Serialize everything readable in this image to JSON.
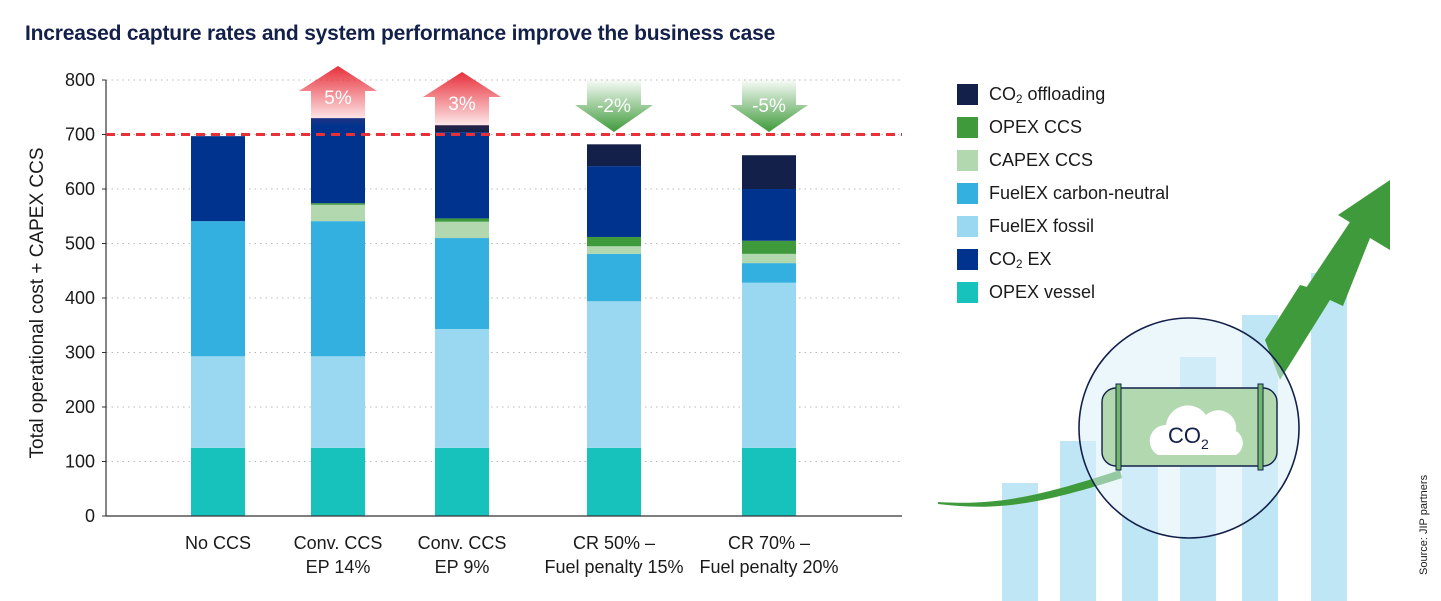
{
  "title": "Increased capture rates and system performance improve the business case",
  "source": "Source: JIP partners",
  "illustration": {
    "tank_label": "CO",
    "tank_label_sub": "2",
    "icon": "co2-tank-icon"
  },
  "colors": {
    "CO2 offloading": "#13214a",
    "OPEX CCS": "#3e9a3a",
    "CAPEX CCS": "#b2d8b0",
    "FuelEX carbon-neutral": "#34b0e0",
    "FuelEX fossil": "#9ad8f1",
    "CO2 EX": "#00338e",
    "OPEX vessel": "#17c2bd",
    "reference_line": "#e8303a",
    "increase": "#e8303a",
    "decrease": "#3e9a3a"
  },
  "legend": [
    {
      "key": "CO2 offloading",
      "label": "CO",
      "sub": "2",
      "suffix": " offloading"
    },
    {
      "key": "OPEX CCS",
      "label": "OPEX CCS",
      "sub": "",
      "suffix": ""
    },
    {
      "key": "CAPEX CCS",
      "label": "CAPEX CCS",
      "sub": "",
      "suffix": ""
    },
    {
      "key": "FuelEX carbon-neutral",
      "label": "FuelEX carbon-neutral",
      "sub": "",
      "suffix": ""
    },
    {
      "key": "FuelEX fossil",
      "label": "FuelEX fossil",
      "sub": "",
      "suffix": ""
    },
    {
      "key": "CO2 EX",
      "label": "CO",
      "sub": "2",
      "suffix": " EX"
    },
    {
      "key": "OPEX vessel",
      "label": "OPEX vessel",
      "sub": "",
      "suffix": ""
    }
  ],
  "chart_data": {
    "type": "bar",
    "stacked": true,
    "title": "Increased capture rates and system performance improve the business case",
    "xlabel": "",
    "ylabel": "Total operational cost + CAPEX CCS",
    "ylim": [
      0,
      800
    ],
    "yticks": [
      0,
      100,
      200,
      300,
      400,
      500,
      600,
      700,
      800
    ],
    "grid": true,
    "legend_position": "right",
    "reference_line": {
      "y": 700,
      "style": "dashed"
    },
    "categories": [
      [
        "No CCS"
      ],
      [
        "Conv. CCS",
        "EP 14%"
      ],
      [
        "Conv. CCS",
        "EP 9%"
      ],
      [
        "CR 50% –",
        "Fuel penalty 15%"
      ],
      [
        "CR 70% –",
        "Fuel penalty 20%"
      ]
    ],
    "series": [
      {
        "name": "OPEX vessel",
        "values": [
          125,
          125,
          125,
          125,
          125
        ]
      },
      {
        "name": "FuelEX fossil",
        "values": [
          168,
          168,
          218,
          269,
          303
        ]
      },
      {
        "name": "FuelEX carbon-neutral",
        "values": [
          248,
          248,
          167,
          87,
          36
        ]
      },
      {
        "name": "CAPEX CCS",
        "values": [
          0,
          30,
          30,
          14,
          17
        ]
      },
      {
        "name": "OPEX CCS",
        "values": [
          0,
          3,
          6,
          17,
          24
        ]
      },
      {
        "name": "CO2 EX",
        "values": [
          156,
          156,
          158,
          130,
          95
        ]
      },
      {
        "name": "CO2 offloading",
        "values": [
          0,
          0,
          13,
          40,
          62
        ]
      }
    ],
    "annotations": [
      null,
      {
        "text": "5%",
        "direction": "up"
      },
      {
        "text": "3%",
        "direction": "up"
      },
      {
        "text": "-2%",
        "direction": "down"
      },
      {
        "text": "-5%",
        "direction": "down"
      }
    ]
  }
}
